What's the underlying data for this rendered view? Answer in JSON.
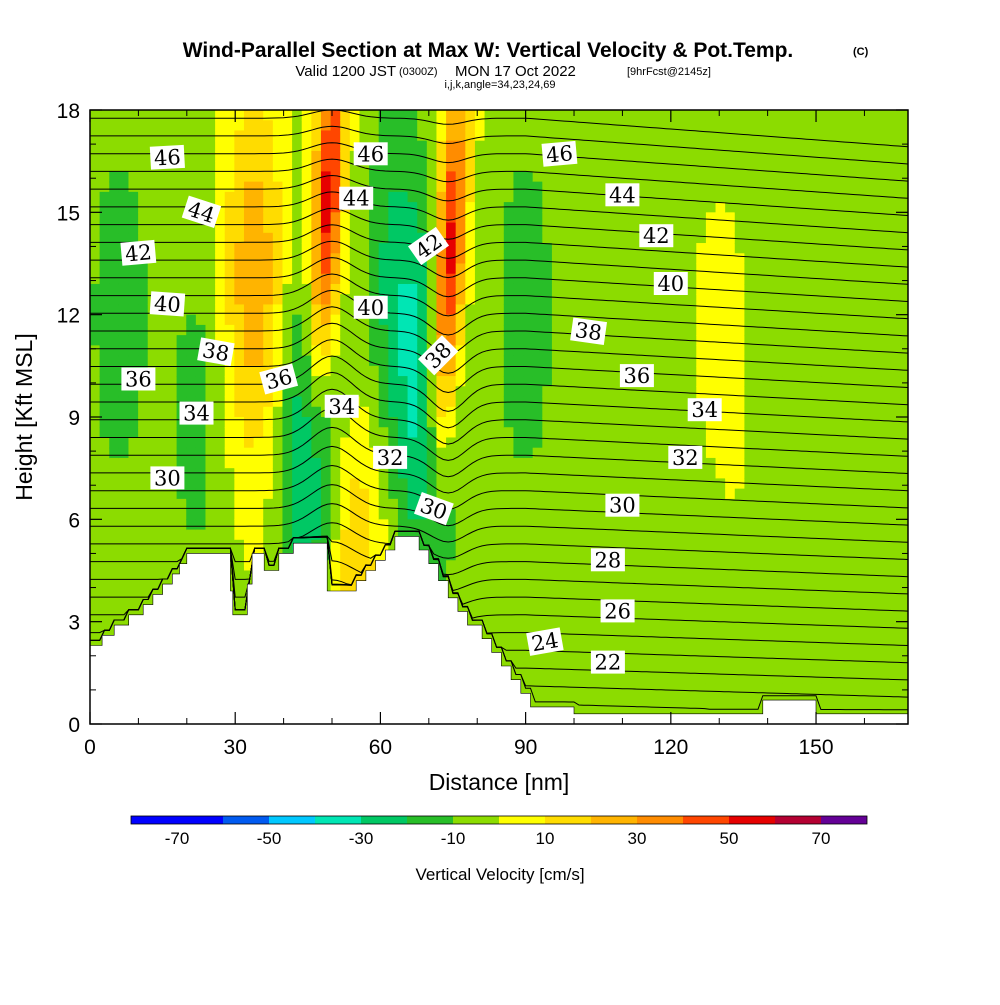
{
  "chart_data": {
    "type": "contour",
    "title": "Wind-Parallel Section at Max W: Vertical Velocity & Pot.Temp.",
    "title_mark": "(C)",
    "subtitle_main": "Valid 1200 JST",
    "subtitle_utc": "(0300Z)",
    "subtitle_date": "MON 17 Oct 2022",
    "subtitle_fcst": "[9hrFcst@2145z]",
    "subtitle_indices": "i,j,k,angle=34,23,24,69",
    "xlabel": "Distance [nm]",
    "ylabel": "Height [Kft MSL]",
    "xlim": [
      0,
      169
    ],
    "ylim": [
      0,
      18
    ],
    "x_ticks": [
      "0",
      "30",
      "60",
      "90",
      "120",
      "150"
    ],
    "x_tick_values": [
      0,
      30,
      60,
      90,
      120,
      150
    ],
    "y_ticks": [
      "0",
      "3",
      "6",
      "9",
      "12",
      "15",
      "18"
    ],
    "y_tick_values": [
      0,
      3,
      6,
      9,
      12,
      15,
      18
    ],
    "colorbar": {
      "label": "Vertical Velocity [cm/s]",
      "range": [
        -80,
        80
      ],
      "ticks": [
        "-70",
        "-50",
        "-30",
        "-10",
        "10",
        "30",
        "50",
        "70"
      ],
      "tick_values": [
        -70,
        -50,
        -30,
        -10,
        10,
        30,
        50,
        70
      ],
      "bins": [
        {
          "from": -80,
          "to": -60,
          "color": "#0000ff"
        },
        {
          "from": -60,
          "to": -50,
          "color": "#005af0"
        },
        {
          "from": -50,
          "to": -40,
          "color": "#00c8ff"
        },
        {
          "from": -40,
          "to": -30,
          "color": "#00e6b4"
        },
        {
          "from": -30,
          "to": -20,
          "color": "#00c864"
        },
        {
          "from": -20,
          "to": -10,
          "color": "#28be28"
        },
        {
          "from": -10,
          "to": 0,
          "color": "#8cdc00"
        },
        {
          "from": 0,
          "to": 10,
          "color": "#ffff00"
        },
        {
          "from": 10,
          "to": 20,
          "color": "#ffdc00"
        },
        {
          "from": 20,
          "to": 30,
          "color": "#ffb400"
        },
        {
          "from": 30,
          "to": 40,
          "color": "#ff8c00"
        },
        {
          "from": 40,
          "to": 50,
          "color": "#ff4600"
        },
        {
          "from": 50,
          "to": 60,
          "color": "#e60000"
        },
        {
          "from": 60,
          "to": 70,
          "color": "#b40032"
        },
        {
          "from": 70,
          "to": 80,
          "color": "#640096"
        }
      ]
    },
    "vertical_velocity_features": [
      {
        "x": 6,
        "y": 12,
        "w": -15
      },
      {
        "x": 22,
        "y": 9,
        "w": -12
      },
      {
        "x": 34,
        "y": 13,
        "w": 30
      },
      {
        "x": 46,
        "y": 8,
        "w": -35
      },
      {
        "x": 49,
        "y": 15,
        "w": 60
      },
      {
        "x": 54,
        "y": 4.5,
        "w": 25
      },
      {
        "x": 63,
        "y": 13,
        "w": -20
      },
      {
        "x": 70,
        "y": 9,
        "w": -30
      },
      {
        "x": 74,
        "y": 13,
        "w": 65
      },
      {
        "x": 90,
        "y": 12,
        "w": -15
      },
      {
        "x": 130,
        "y": 10,
        "w": 5
      },
      {
        "x": 125,
        "y": 2,
        "w": -8
      }
    ],
    "theta_labels": [
      {
        "text": "46",
        "x": 16,
        "y": 16.6,
        "angle": -3
      },
      {
        "text": "44",
        "x": 23,
        "y": 15.0,
        "angle": 18
      },
      {
        "text": "42",
        "x": 10,
        "y": 13.8,
        "angle": -5
      },
      {
        "text": "40",
        "x": 16,
        "y": 12.3,
        "angle": 4
      },
      {
        "text": "38",
        "x": 26,
        "y": 10.9,
        "angle": 10
      },
      {
        "text": "36",
        "x": 10,
        "y": 10.1,
        "angle": 0
      },
      {
        "text": "36",
        "x": 39,
        "y": 10.1,
        "angle": -15
      },
      {
        "text": "34",
        "x": 22,
        "y": 9.1,
        "angle": 0
      },
      {
        "text": "30",
        "x": 16,
        "y": 7.2,
        "angle": 0
      },
      {
        "text": "46",
        "x": 58,
        "y": 16.7,
        "angle": 0
      },
      {
        "text": "44",
        "x": 55,
        "y": 15.4,
        "angle": 0
      },
      {
        "text": "40",
        "x": 58,
        "y": 12.2,
        "angle": 0
      },
      {
        "text": "34",
        "x": 52,
        "y": 9.3,
        "angle": 0
      },
      {
        "text": "32",
        "x": 62,
        "y": 7.8,
        "angle": 0
      },
      {
        "text": "42",
        "x": 70,
        "y": 14.0,
        "angle": -35
      },
      {
        "text": "38",
        "x": 72,
        "y": 10.8,
        "angle": -45
      },
      {
        "text": "30",
        "x": 71,
        "y": 6.3,
        "angle": 20
      },
      {
        "text": "46",
        "x": 97,
        "y": 16.7,
        "angle": -5
      },
      {
        "text": "44",
        "x": 110,
        "y": 15.5,
        "angle": 0
      },
      {
        "text": "42",
        "x": 117,
        "y": 14.3,
        "angle": 0
      },
      {
        "text": "40",
        "x": 120,
        "y": 12.9,
        "angle": 0
      },
      {
        "text": "38",
        "x": 103,
        "y": 11.5,
        "angle": 8
      },
      {
        "text": "36",
        "x": 113,
        "y": 10.2,
        "angle": 0
      },
      {
        "text": "34",
        "x": 127,
        "y": 9.2,
        "angle": 0
      },
      {
        "text": "32",
        "x": 123,
        "y": 7.8,
        "angle": 0
      },
      {
        "text": "30",
        "x": 110,
        "y": 6.4,
        "angle": 0
      },
      {
        "text": "28",
        "x": 107,
        "y": 4.8,
        "angle": 0
      },
      {
        "text": "26",
        "x": 109,
        "y": 3.3,
        "angle": 0
      },
      {
        "text": "24",
        "x": 94,
        "y": 2.4,
        "angle": -10
      },
      {
        "text": "22",
        "x": 107,
        "y": 1.8,
        "angle": 0
      }
    ],
    "terrain": [
      [
        0,
        0
      ],
      [
        0,
        2.3
      ],
      [
        2.5,
        2.3
      ],
      [
        2.5,
        2.6
      ],
      [
        5,
        2.6
      ],
      [
        5,
        2.9
      ],
      [
        8,
        2.9
      ],
      [
        8,
        3.2
      ],
      [
        11,
        3.2
      ],
      [
        11,
        3.5
      ],
      [
        13,
        3.5
      ],
      [
        13,
        3.8
      ],
      [
        15,
        3.8
      ],
      [
        15,
        4.1
      ],
      [
        17,
        4.1
      ],
      [
        17,
        4.4
      ],
      [
        18.5,
        4.4
      ],
      [
        18.5,
        4.7
      ],
      [
        20,
        4.7
      ],
      [
        20,
        5.0
      ],
      [
        26,
        5.0
      ],
      [
        26,
        5.0
      ],
      [
        29,
        5.0
      ],
      [
        29,
        3.9
      ],
      [
        29.5,
        3.9
      ],
      [
        29.5,
        3.2
      ],
      [
        32.5,
        3.2
      ],
      [
        32.5,
        4.1
      ],
      [
        33.5,
        4.1
      ],
      [
        33.5,
        5.0
      ],
      [
        36,
        5.0
      ],
      [
        36,
        4.5
      ],
      [
        39,
        4.5
      ],
      [
        39,
        5.0
      ],
      [
        42,
        5.0
      ],
      [
        42,
        5.3
      ],
      [
        49,
        5.3
      ],
      [
        49,
        3.9
      ],
      [
        55,
        3.9
      ],
      [
        55,
        4.2
      ],
      [
        57,
        4.2
      ],
      [
        57,
        4.5
      ],
      [
        59,
        4.5
      ],
      [
        59,
        4.8
      ],
      [
        61,
        4.8
      ],
      [
        61,
        5.1
      ],
      [
        63,
        5.1
      ],
      [
        63,
        5.5
      ],
      [
        68,
        5.5
      ],
      [
        68,
        5.1
      ],
      [
        70,
        5.1
      ],
      [
        70,
        4.7
      ],
      [
        72,
        4.7
      ],
      [
        72,
        4.2
      ],
      [
        74,
        4.2
      ],
      [
        74,
        3.7
      ],
      [
        76,
        3.7
      ],
      [
        76,
        3.3
      ],
      [
        78,
        3.3
      ],
      [
        78,
        2.9
      ],
      [
        81,
        2.9
      ],
      [
        81,
        2.5
      ],
      [
        83,
        2.5
      ],
      [
        83,
        2.1
      ],
      [
        85,
        2.1
      ],
      [
        85,
        1.7
      ],
      [
        87,
        1.7
      ],
      [
        87,
        1.3
      ],
      [
        89,
        1.3
      ],
      [
        89,
        0.9
      ],
      [
        91,
        0.9
      ],
      [
        91,
        0.5
      ],
      [
        100,
        0.5
      ],
      [
        100,
        0.3
      ],
      [
        105,
        0.3
      ],
      [
        105,
        0.3
      ],
      [
        139,
        0.3
      ],
      [
        139,
        0.7
      ],
      [
        150,
        0.7
      ],
      [
        150,
        0.3
      ],
      [
        169,
        0.3
      ],
      [
        169,
        0
      ]
    ]
  }
}
